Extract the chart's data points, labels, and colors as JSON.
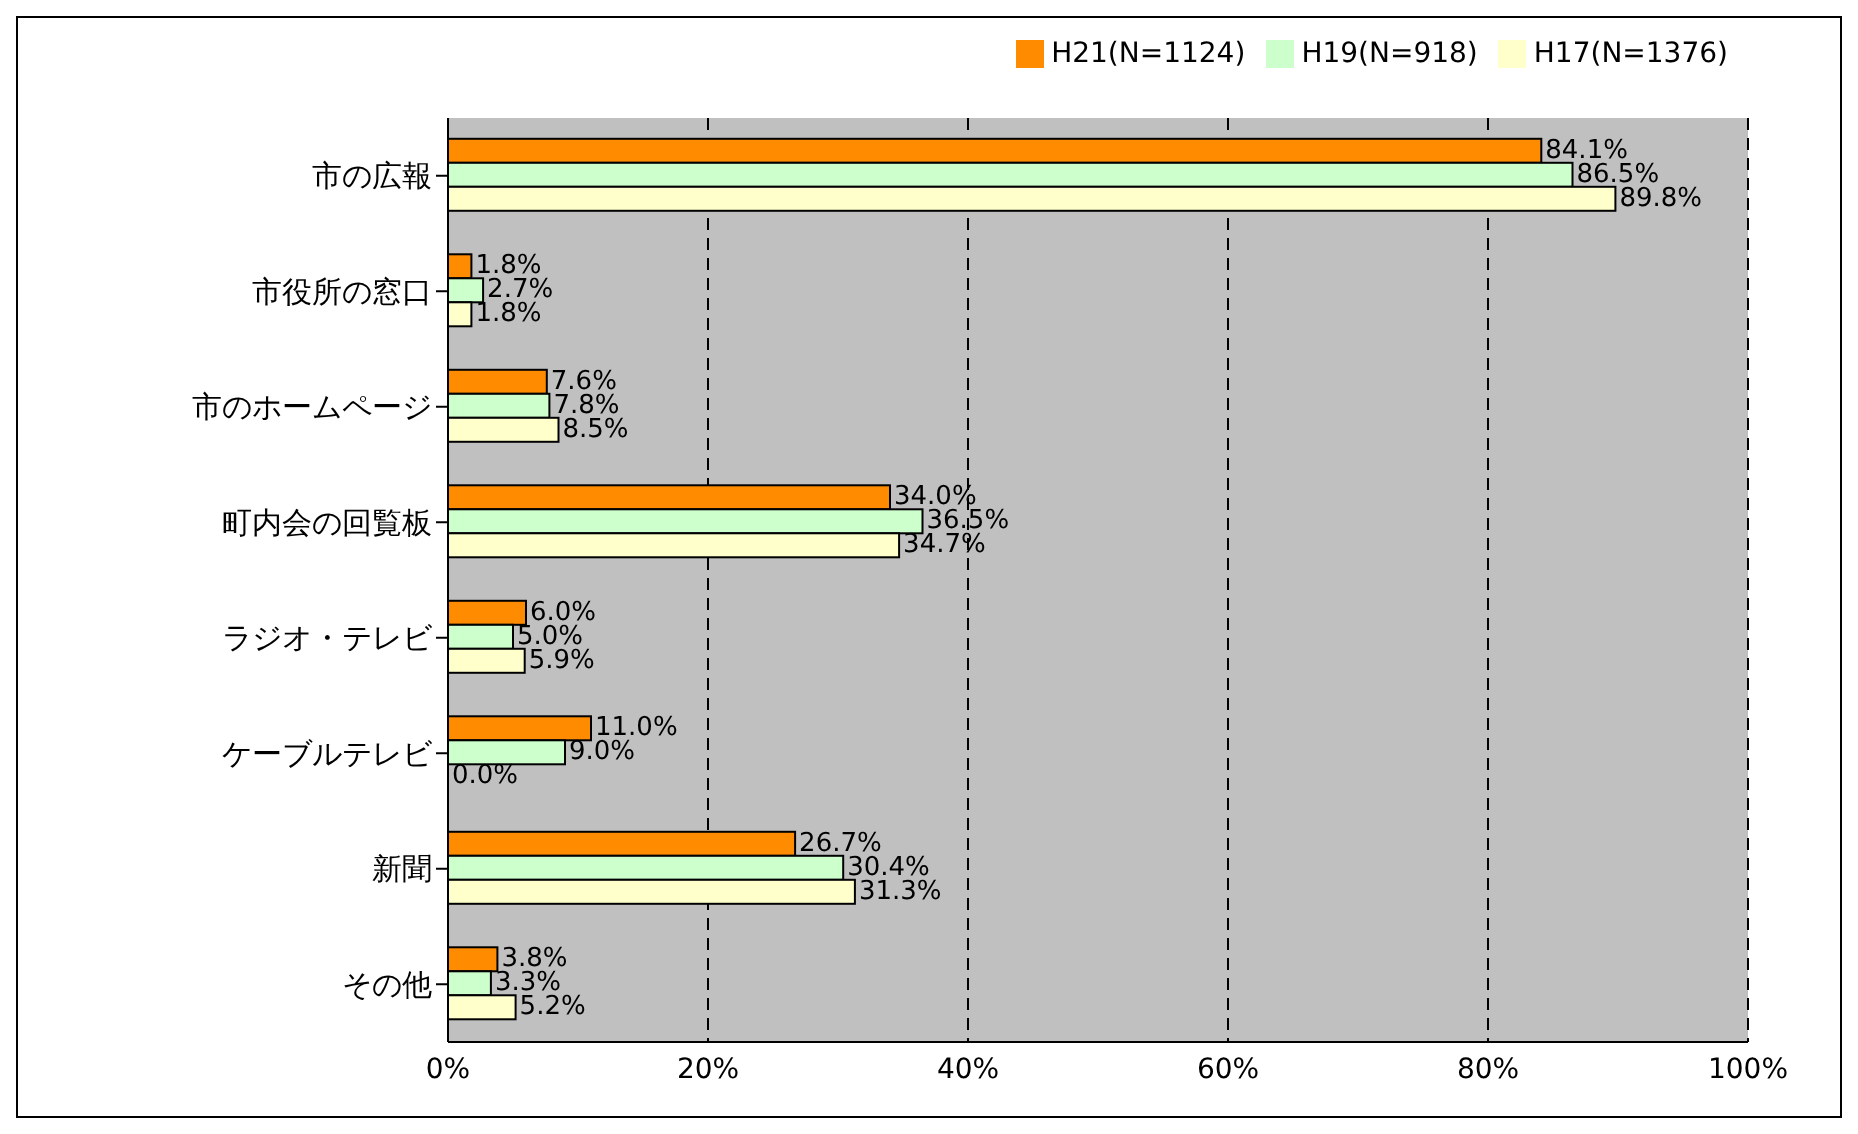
{
  "chart_data": {
    "type": "bar",
    "orientation": "horizontal",
    "categories": [
      "市の広報",
      "市役所の窓口",
      "市のホームページ",
      "町内会の回覧板",
      "ラジオ・テレビ",
      "ケーブルテレビ",
      "新聞",
      "その他"
    ],
    "series": [
      {
        "name": "H21(N=1124)",
        "color": "#ff8c00",
        "values": [
          84.1,
          1.8,
          7.6,
          34.0,
          6.0,
          11.0,
          26.7,
          3.8
        ],
        "value_labels": [
          "84.1%",
          "1.8%",
          "7.6%",
          "34.0%",
          "6.0%",
          "11.0%",
          "26.7%",
          "3.8%"
        ]
      },
      {
        "name": "H19(N=918)",
        "color": "#ccffcc",
        "values": [
          86.5,
          2.7,
          7.8,
          36.5,
          5.0,
          9.0,
          30.4,
          3.3
        ],
        "value_labels": [
          "86.5%",
          "2.7%",
          "7.8%",
          "36.5%",
          "5.0%",
          "9.0%",
          "30.4%",
          "3.3%"
        ]
      },
      {
        "name": "H17(N=1376)",
        "color": "#ffffcc",
        "values": [
          89.8,
          1.8,
          8.5,
          34.7,
          5.9,
          0.0,
          31.3,
          5.2
        ],
        "value_labels": [
          "89.8%",
          "1.8%",
          "8.5%",
          "34.7%",
          "5.9%",
          "0.0%",
          "31.3%",
          "5.2%"
        ]
      }
    ],
    "xlim": [
      0,
      100
    ],
    "xticks": [
      {
        "value": 0,
        "label": "0%"
      },
      {
        "value": 20,
        "label": "20%"
      },
      {
        "value": 40,
        "label": "40%"
      },
      {
        "value": 60,
        "label": "60%"
      },
      {
        "value": 80,
        "label": "80%"
      },
      {
        "value": 100,
        "label": "100%"
      }
    ],
    "grid": "x",
    "legend": "top right"
  }
}
